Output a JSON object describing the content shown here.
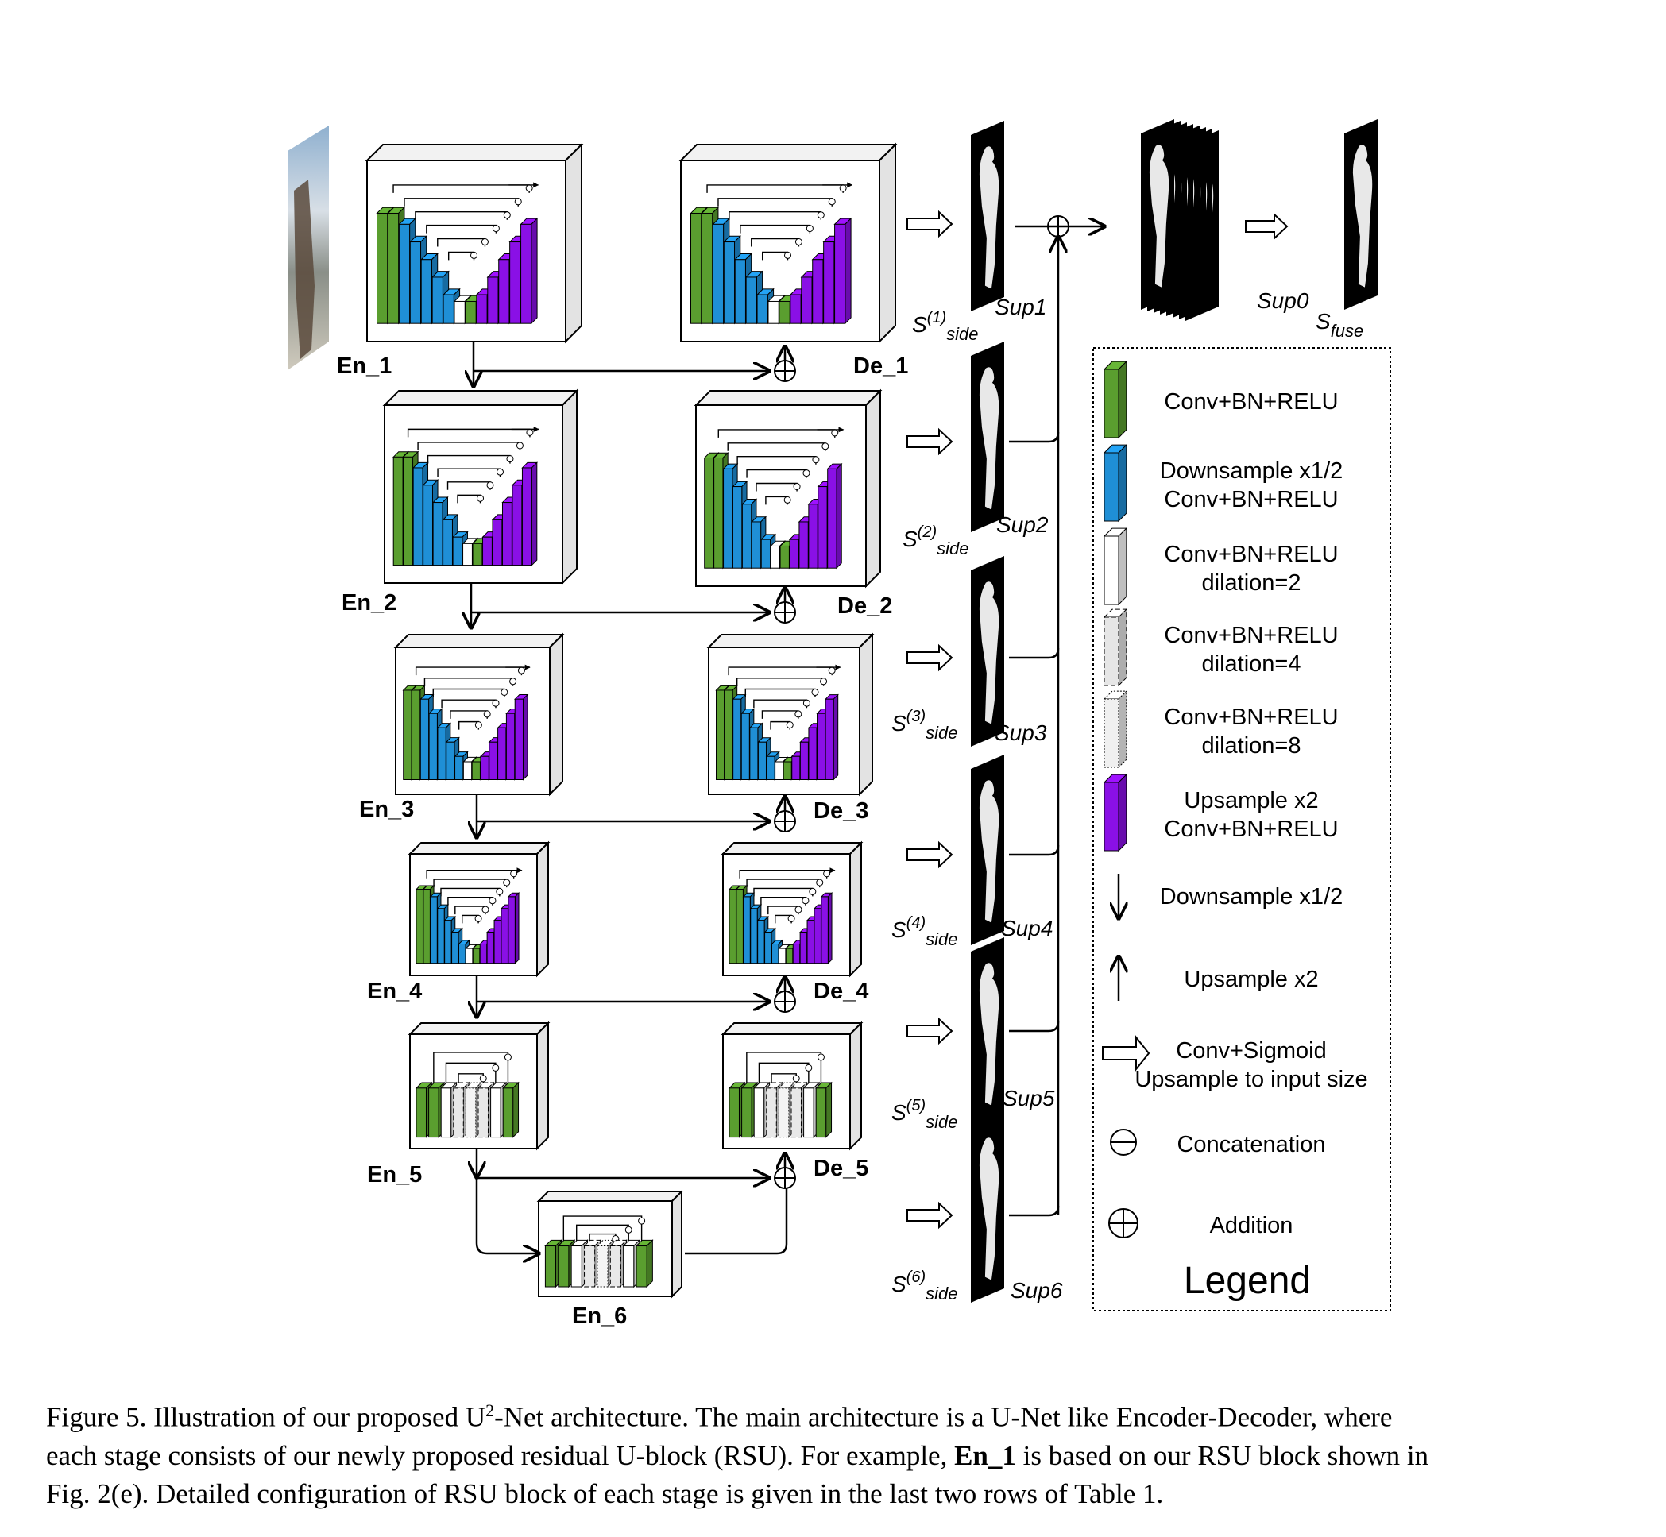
{
  "stages": {
    "encoders": [
      "En_1",
      "En_2",
      "En_3",
      "En_4",
      "En_5",
      "En_6"
    ],
    "decoders": [
      "De_1",
      "De_2",
      "De_3",
      "De_4",
      "De_5"
    ]
  },
  "side_outputs": {
    "sup_labels": [
      "Sup1",
      "Sup2",
      "Sup3",
      "Sup4",
      "Sup5",
      "Sup6"
    ],
    "s_side": {
      "s": "S",
      "sub": "side",
      "indices": [
        "(1)",
        "(2)",
        "(3)",
        "(4)",
        "(5)",
        "(6)"
      ]
    },
    "sup0": "Sup0",
    "s_fuse": {
      "s": "S",
      "sub": "fuse"
    }
  },
  "legend": {
    "title": "Legend",
    "items": [
      {
        "icon": "green-conv-block",
        "lines": [
          "Conv+BN+RELU"
        ]
      },
      {
        "icon": "blue-downsample-block",
        "lines": [
          "Downsample x1/2",
          "Conv+BN+RELU"
        ]
      },
      {
        "icon": "white-dilated-block",
        "lines": [
          "Conv+BN+RELU",
          "dilation=2"
        ]
      },
      {
        "icon": "dashed-dilated-block",
        "lines": [
          "Conv+BN+RELU",
          "dilation=4"
        ]
      },
      {
        "icon": "dotted-dilated-block",
        "lines": [
          "Conv+BN+RELU",
          "dilation=8"
        ]
      },
      {
        "icon": "purple-upsample-block",
        "lines": [
          "Upsample x2",
          "Conv+BN+RELU"
        ]
      },
      {
        "icon": "down-arrow-icon",
        "lines": [
          "Downsample x1/2"
        ]
      },
      {
        "icon": "up-arrow-icon",
        "lines": [
          "Upsample x2"
        ]
      },
      {
        "icon": "hollow-arrow-icon",
        "lines": [
          "Conv+Sigmoid",
          "Upsample to input size"
        ]
      },
      {
        "icon": "concatenation-icon",
        "lines": [
          "Concatenation"
        ]
      },
      {
        "icon": "addition-icon",
        "lines": [
          "Addition"
        ]
      }
    ]
  },
  "colors": {
    "green": "#5a9e2f",
    "blue": "#1f8fd6",
    "purple": "#8a10e6",
    "box_side": "#e3e3e3"
  },
  "caption": {
    "line1_a": "Figure 5.  Illustration of our proposed U",
    "line1_sup": "2",
    "line1_b": "-Net architecture.  The main architecture is a U-Net like Encoder-Decoder, where",
    "line2_a": "each stage consists of our newly proposed residual U-block (RSU). For example, ",
    "line2_bold": "En_1",
    "line2_b": " is based on our RSU block shown in",
    "line3": "Fig. 2(e). Detailed configuration of RSU block of each stage is given in the last two rows of Table 1."
  }
}
